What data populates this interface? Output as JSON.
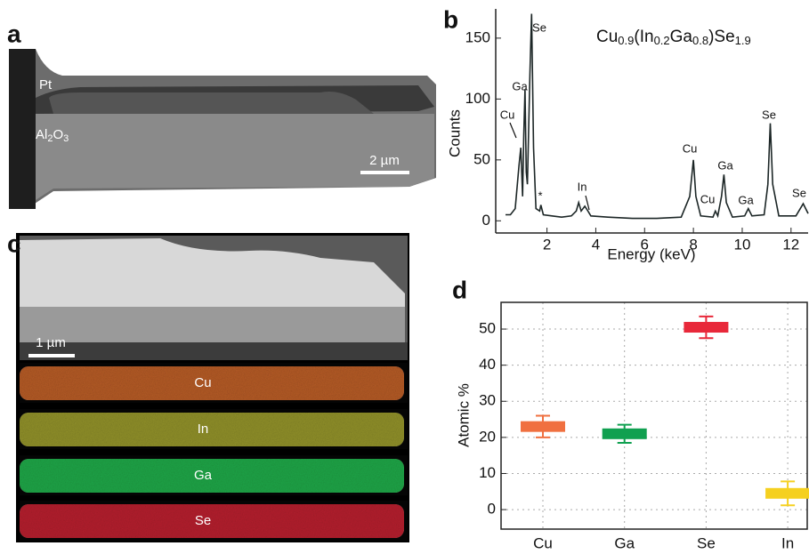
{
  "panel_labels": [
    "a",
    "b",
    "c",
    "d"
  ],
  "image_a": {
    "pt_label": "Pt",
    "al2o3_parts": [
      "Al",
      "2",
      "O",
      "3"
    ],
    "scale_bar": "2 µm"
  },
  "image_c": {
    "scale_bar": "1 µm",
    "maps": [
      "Cu",
      "In",
      "Ga",
      "Se"
    ]
  },
  "chart_data": [
    {
      "type": "line",
      "formula_parts": [
        "Cu",
        "0.9",
        "(In",
        "0.2",
        "Ga",
        "0.8",
        ")Se",
        "1.9"
      ],
      "x_label": "Energy (keV)",
      "y_label": "Counts",
      "color": "#1c2626",
      "x": [
        0.3,
        0.5,
        0.7,
        0.85,
        0.93,
        1.0,
        1.05,
        1.1,
        1.15,
        1.2,
        1.3,
        1.37,
        1.45,
        1.55,
        1.7,
        1.75,
        1.85,
        2.2,
        2.6,
        3.0,
        3.2,
        3.3,
        3.4,
        3.55,
        3.65,
        3.8,
        4.5,
        5.5,
        6.5,
        7.5,
        7.85,
        8.0,
        8.1,
        8.3,
        8.8,
        8.9,
        9.0,
        9.15,
        9.25,
        9.35,
        9.6,
        10.1,
        10.25,
        10.4,
        10.9,
        11.05,
        11.15,
        11.25,
        11.5,
        12.2,
        12.5,
        12.7
      ],
      "values": [
        5,
        5,
        10,
        45,
        60,
        20,
        70,
        108,
        40,
        30,
        120,
        170,
        60,
        10,
        8,
        13,
        5,
        4,
        3,
        4,
        8,
        15,
        8,
        12,
        9,
        4,
        3,
        2,
        2,
        3,
        20,
        50,
        20,
        4,
        3,
        8,
        4,
        20,
        38,
        15,
        3,
        4,
        10,
        4,
        5,
        30,
        80,
        30,
        4,
        4,
        14,
        6
      ],
      "annotations": [
        "Se",
        "Ga",
        "Cu",
        "*",
        "In",
        "Cu",
        "Cu",
        "Ga",
        "Ga",
        "Se",
        "Se"
      ],
      "xlim": [
        -0.1,
        12.7
      ],
      "ylim": [
        -10,
        174
      ],
      "xticks": [
        2,
        4,
        6,
        8,
        10,
        12
      ],
      "yticks": [
        0,
        50,
        100,
        150
      ]
    },
    {
      "type": "errorbar",
      "y_label": "Atomic %",
      "categories": [
        "Cu",
        "Ga",
        "Se",
        "In"
      ],
      "values": [
        23,
        21,
        50.5,
        4.5
      ],
      "errors": [
        3,
        2.5,
        3,
        3.3
      ],
      "colors": [
        "#f07040",
        "#10a050",
        "#e8283a",
        "#f5d020"
      ],
      "ylim": [
        -5.4,
        57.4
      ],
      "yticks": [
        0,
        10,
        20,
        30,
        40,
        50
      ],
      "grid": true
    }
  ]
}
